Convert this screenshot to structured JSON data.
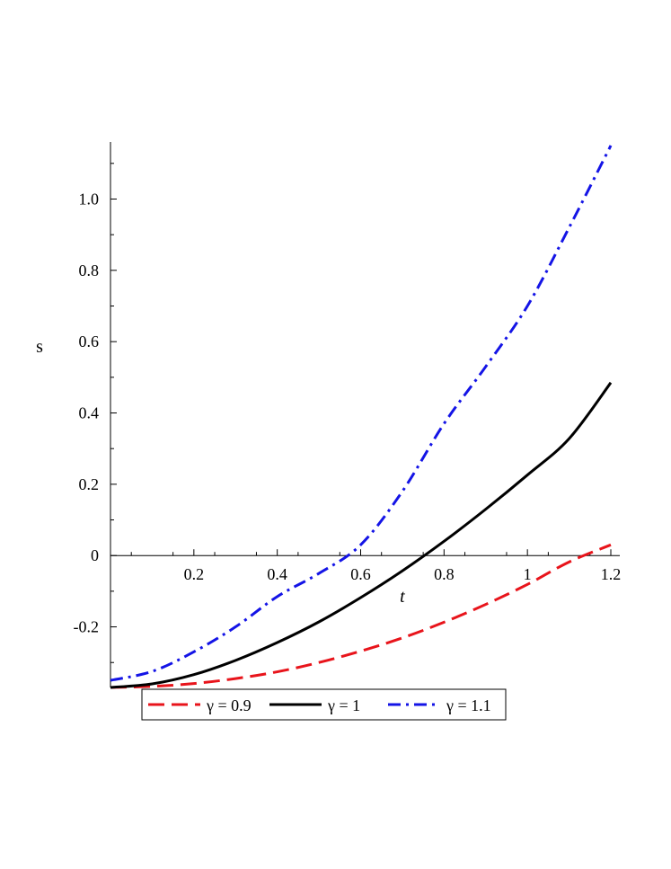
{
  "chart_data": {
    "type": "line",
    "xlabel": "t",
    "ylabel": "s",
    "xlim": [
      0,
      1.2
    ],
    "ylim": [
      -0.37,
      1.16
    ],
    "grid": false,
    "legend_position": "bottom",
    "x_ticks": [
      0.2,
      0.4,
      0.6,
      0.8,
      1,
      1.2
    ],
    "x_tick_labels": [
      "0.2",
      "0.4",
      "0.6",
      "0.8",
      "1",
      "1.2"
    ],
    "y_ticks": [
      -0.2,
      0,
      0.2,
      0.4,
      0.6,
      0.8,
      1.0
    ],
    "y_tick_labels": [
      "-0.2",
      "0",
      "0.2",
      "0.4",
      "0.6",
      "0.8",
      "1.0"
    ],
    "x": [
      0,
      0.1,
      0.2,
      0.3,
      0.4,
      0.5,
      0.6,
      0.7,
      0.8,
      0.9,
      1.0,
      1.1,
      1.2
    ],
    "series": [
      {
        "name": "γ = 0.9",
        "color": "#e8141b",
        "dash": "dashed",
        "values": [
          -0.37,
          -0.367,
          -0.359,
          -0.345,
          -0.326,
          -0.3,
          -0.268,
          -0.231,
          -0.187,
          -0.137,
          -0.081,
          -0.018,
          0.03
        ]
      },
      {
        "name": "γ = 1",
        "color": "#000000",
        "dash": "solid",
        "values": [
          -0.37,
          -0.36,
          -0.334,
          -0.294,
          -0.244,
          -0.186,
          -0.118,
          -0.043,
          0.04,
          0.13,
          0.226,
          0.328,
          0.485
        ]
      },
      {
        "name": "γ = 1.1",
        "color": "#1414e6",
        "dash": "dashdot",
        "values": [
          -0.35,
          -0.325,
          -0.27,
          -0.2,
          -0.115,
          -0.05,
          0.03,
          0.18,
          0.37,
          0.53,
          0.7,
          0.92,
          1.15
        ]
      }
    ]
  }
}
